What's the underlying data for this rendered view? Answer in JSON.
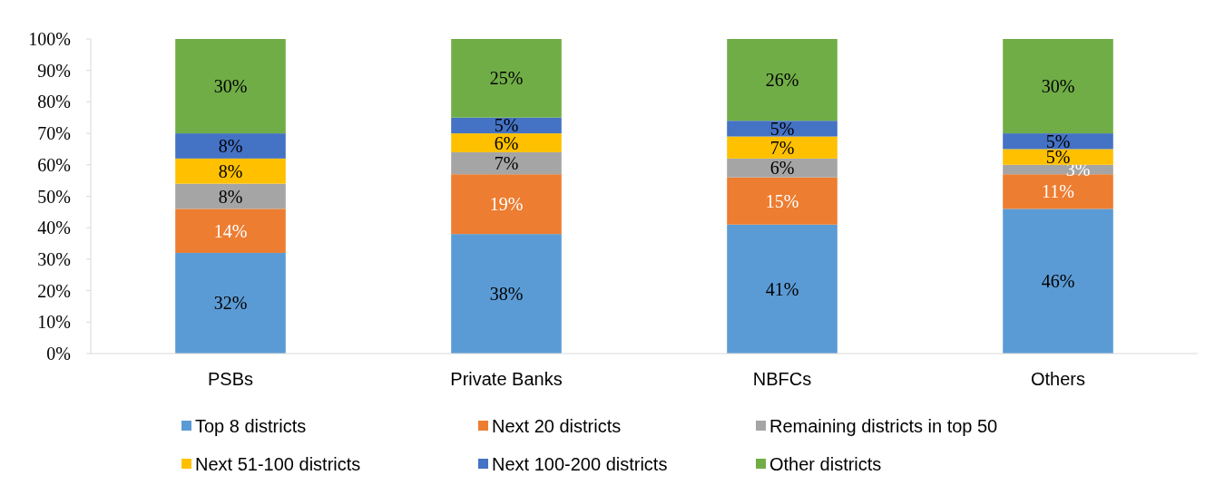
{
  "chart_data": {
    "type": "bar",
    "stacked": true,
    "categories": [
      "PSBs",
      "Private Banks",
      "NBFCs",
      "Others"
    ],
    "ylim": [
      0,
      100
    ],
    "yticks": [
      {
        "value": 0,
        "label": "0%"
      },
      {
        "value": 10,
        "label": "10%"
      },
      {
        "value": 20,
        "label": "20%"
      },
      {
        "value": 30,
        "label": "30%"
      },
      {
        "value": 40,
        "label": "40%"
      },
      {
        "value": 50,
        "label": "50%"
      },
      {
        "value": 60,
        "label": "60%"
      },
      {
        "value": 70,
        "label": "70%"
      },
      {
        "value": 80,
        "label": "80%"
      },
      {
        "value": 90,
        "label": "90%"
      },
      {
        "value": 100,
        "label": "100%"
      }
    ],
    "grid": false,
    "legend": "bottom",
    "series": [
      {
        "name": "Top 8 districts",
        "color": "#5b9bd5",
        "values": [
          32,
          38,
          41,
          46
        ],
        "value_labels": [
          "32%",
          "38%",
          "41%",
          "46%"
        ]
      },
      {
        "name": "Next 20 districts",
        "color": "#ed7d31",
        "values": [
          14,
          19,
          15,
          11
        ],
        "value_labels": [
          "14%",
          "19%",
          "15%",
          "11%"
        ]
      },
      {
        "name": "Remaining districts in top 50",
        "color": "#a5a5a5",
        "values": [
          8,
          7,
          6,
          3
        ],
        "value_labels": [
          "8%",
          "7%",
          "6%",
          "3%"
        ]
      },
      {
        "name": "Next 51-100 districts",
        "color": "#ffc000",
        "values": [
          8,
          6,
          7,
          5
        ],
        "value_labels": [
          "8%",
          "6%",
          "7%",
          "5%"
        ]
      },
      {
        "name": "Next 100-200 districts",
        "color": "#4472c4",
        "values": [
          8,
          5,
          5,
          5
        ],
        "value_labels": [
          "8%",
          "5%",
          "5%",
          "5%"
        ]
      },
      {
        "name": "Other districts",
        "color": "#70ad47",
        "values": [
          30,
          25,
          26,
          30
        ],
        "value_labels": [
          "30%",
          "25%",
          "26%",
          "30%"
        ]
      }
    ]
  }
}
